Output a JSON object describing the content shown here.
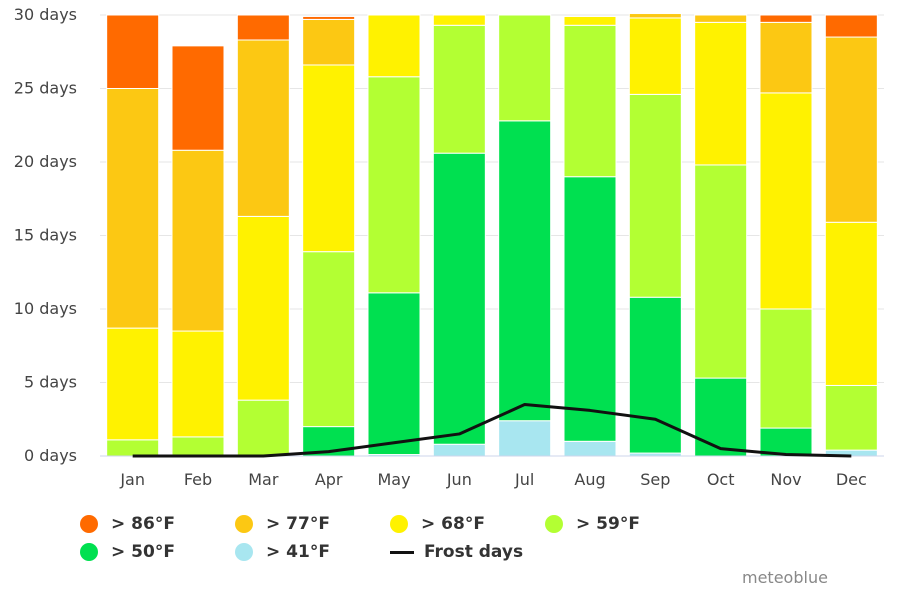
{
  "chart_data": {
    "type": "bar",
    "stacked": true,
    "categories": [
      "Jan",
      "Feb",
      "Mar",
      "Apr",
      "May",
      "Jun",
      "Jul",
      "Aug",
      "Sep",
      "Oct",
      "Nov",
      "Dec"
    ],
    "y_ticks": [
      "0 days",
      "5 days",
      "10 days",
      "15 days",
      "20 days",
      "25 days",
      "30 days"
    ],
    "ylim": [
      0,
      30
    ],
    "grid": true,
    "legend_position": "bottom",
    "series": [
      {
        "name": "> 41°F",
        "color": "#a8e6f0",
        "values": [
          0,
          0,
          0,
          0,
          0.1,
          0.8,
          2.4,
          1.0,
          0.2,
          0,
          0,
          0.4
        ]
      },
      {
        "name": "> 50°F",
        "color": "#00e050",
        "values": [
          0,
          0,
          0,
          2.0,
          11.0,
          19.8,
          20.4,
          18.0,
          10.6,
          5.3,
          1.9,
          0
        ]
      },
      {
        "name": "> 59°F",
        "color": "#b3ff33",
        "values": [
          1.1,
          1.3,
          3.8,
          11.9,
          14.7,
          8.7,
          7.2,
          10.3,
          13.8,
          14.5,
          8.1,
          4.4
        ]
      },
      {
        "name": "> 68°F",
        "color": "#fff200",
        "values": [
          7.6,
          7.2,
          12.5,
          12.7,
          4.2,
          0.7,
          0,
          0.6,
          5.2,
          9.7,
          14.7,
          11.1
        ]
      },
      {
        "name": "> 77°F",
        "color": "#fcc813",
        "values": [
          16.3,
          12.3,
          12.0,
          3.1,
          0,
          0,
          0,
          0,
          0.3,
          0.5,
          4.8,
          12.6
        ]
      },
      {
        "name": "> 86°F",
        "color": "#ff6a00",
        "values": [
          5.0,
          7.1,
          1.7,
          0.2,
          0,
          0,
          0,
          0,
          0,
          0,
          0.5,
          1.5
        ]
      }
    ],
    "line_series": {
      "name": "Frost days",
      "color": "#111111",
      "values": [
        0,
        0,
        0,
        0.3,
        0.9,
        1.5,
        3.5,
        3.1,
        2.5,
        0.5,
        0.1,
        0
      ]
    }
  },
  "legend": [
    {
      "label": "> 86°F",
      "color": "#ff6a00"
    },
    {
      "label": "> 77°F",
      "color": "#fcc813"
    },
    {
      "label": "> 68°F",
      "color": "#fff200"
    },
    {
      "label": "> 59°F",
      "color": "#b3ff33"
    },
    {
      "label": "> 50°F",
      "color": "#00e050"
    },
    {
      "label": "> 41°F",
      "color": "#a8e6f0"
    }
  ],
  "line_legend_label": "Frost days",
  "credit": "meteoblue"
}
